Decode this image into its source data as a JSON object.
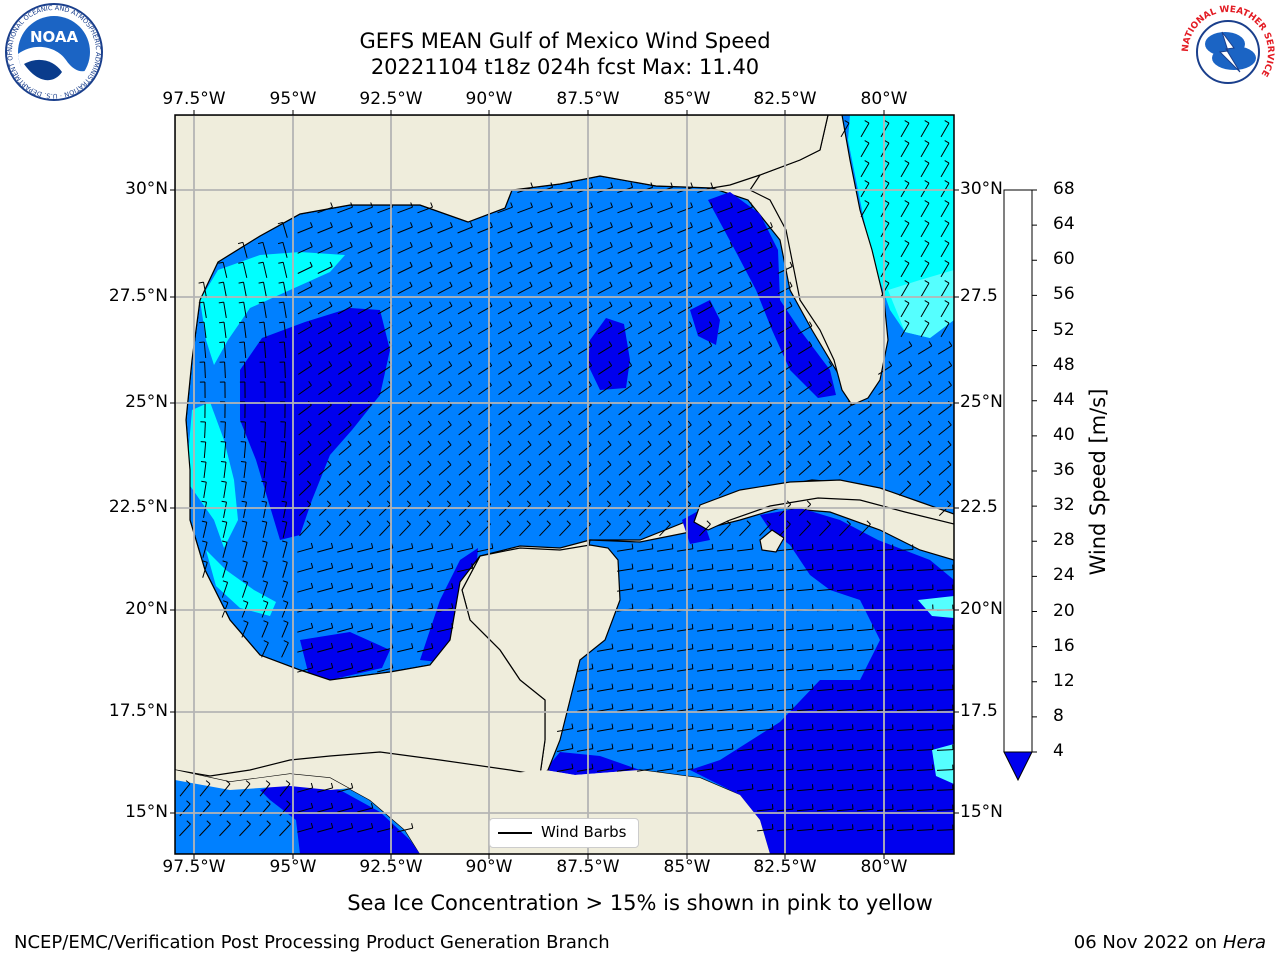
{
  "title": {
    "line1": "GEFS MEAN Gulf of Mexico Wind Speed",
    "line2": "20221104 t18z 024h fcst   Max: 11.40"
  },
  "logos": {
    "left": {
      "icon": "noaa-logo-icon",
      "text": "NOAA",
      "ring_text": "NATIONAL OCEANIC AND ATMOSPHERIC ADMINISTRATION · U.S. DEPARTMENT OF COMMERCE"
    },
    "right": {
      "icon": "nws-logo-icon",
      "ring_text": "NATIONAL WEATHER SERVICE"
    }
  },
  "map": {
    "lon_labels": [
      "97.5°W",
      "95°W",
      "92.5°W",
      "90°W",
      "87.5°W",
      "85°W",
      "82.5°W",
      "80°W"
    ],
    "lat_labels_left": [
      "30°N",
      "27.5°N",
      "25°N",
      "22.5°N",
      "20°N",
      "17.5°N",
      "15°N"
    ],
    "lat_labels_right": [
      "30°N",
      "27.5",
      "25°N",
      "22.5",
      "20°N",
      "17.5",
      "15°N"
    ],
    "legend_label": "Wind Barbs",
    "colors": {
      "land": "#efeddc",
      "ocean_4_8": "#0080ff",
      "ocean_lt4": "#0000ee",
      "ocean_8_12": "#00ffff",
      "ocean_12_16": "#55ffff"
    }
  },
  "colorbar": {
    "label": "Wind Speed [m/s]",
    "ticks": [
      "4",
      "8",
      "12",
      "16",
      "20",
      "24",
      "28",
      "32",
      "36",
      "40",
      "44",
      "48",
      "52",
      "56",
      "60",
      "64",
      "68"
    ],
    "colors": [
      "#0080ff",
      "#00ffff",
      "#55ffff",
      "#99ffff",
      "#55ff77",
      "#22ee22",
      "#00dd00",
      "#55dd00",
      "#aadd00",
      "#ccee00",
      "#eeff00",
      "#ffff00",
      "#ffdd00",
      "#ffaa00",
      "#ff8800",
      "#ff5500",
      "#ff2200",
      "#ff0000"
    ],
    "extend_min_color": "#0000ee"
  },
  "note": "Sea Ice Concentration > 15% is shown in pink to yellow",
  "footer": {
    "left": "NCEP/EMC/Verification Post Processing Product Generation Branch",
    "date": "06 Nov 2022 on",
    "machine": "Hera"
  }
}
